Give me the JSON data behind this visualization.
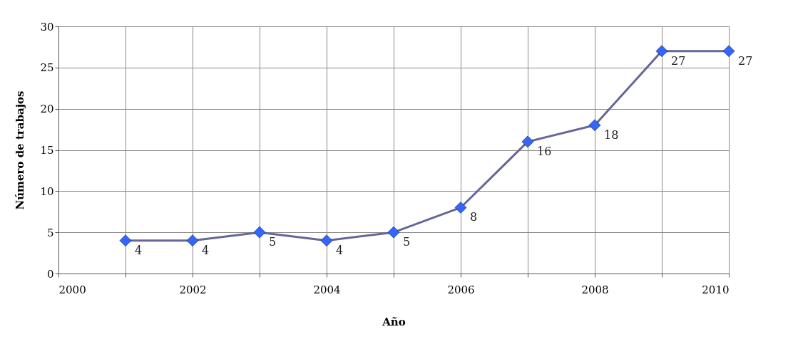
{
  "chart_data": {
    "type": "line",
    "xlabel": "Año",
    "ylabel": "Número de trabajos",
    "x": [
      2001,
      2002,
      2003,
      2004,
      2005,
      2006,
      2007,
      2008,
      2009,
      2010
    ],
    "series": [
      {
        "color": "#666699",
        "colors": [
          "#3366ff",
          "#3366ff",
          "#3366ff",
          "#3366ff",
          "#3366ff",
          "#3366ff",
          "#3366ff",
          "#3366ff",
          "#3366ff",
          "#3366ff"
        ],
        "values": [
          4,
          4,
          5,
          4,
          5,
          8,
          16,
          18,
          27,
          27
        ]
      }
    ],
    "xlim": [
      2000,
      2010
    ],
    "xticks": [
      2000,
      {
        "value": 2001,
        "label": null
      },
      2002,
      {
        "value": 2003,
        "label": null
      },
      2004,
      {
        "value": 2005,
        "label": null
      },
      2006,
      {
        "value": 2007,
        "label": null
      },
      2008,
      {
        "value": 2009,
        "label": null
      },
      2010
    ],
    "ylim": [
      0,
      30
    ],
    "yticks": [
      0,
      5,
      10,
      15,
      20,
      25,
      30
    ],
    "grid": true,
    "marker": "diamond",
    "line_style": "solid",
    "data_labels": true
  }
}
